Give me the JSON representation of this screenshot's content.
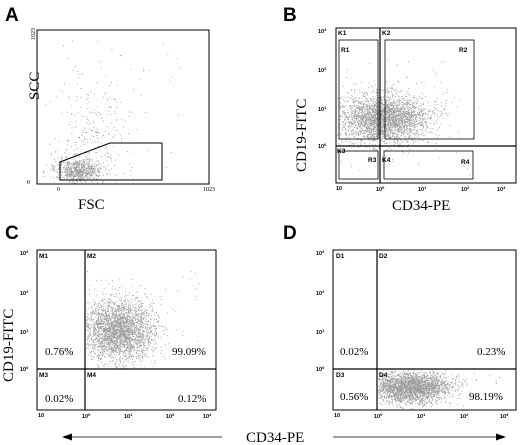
{
  "chart_data": [
    {
      "panel": "A",
      "type": "scatter",
      "xlabel": "FSC",
      "ylabel": "SCC",
      "x_ticks": [
        "0",
        "1023"
      ],
      "y_ticks": [
        "0",
        "1023"
      ],
      "xlim": [
        0,
        1023
      ],
      "ylim": [
        0,
        1023
      ],
      "points_density": "main population clustered at low FSC/SCC, sparse scatter up to high SCC",
      "gate_polygon": [
        [
          120,
          20
        ],
        [
          120,
          120
        ],
        [
          380,
          300
        ],
        [
          700,
          300
        ],
        [
          700,
          20
        ]
      ]
    },
    {
      "panel": "B",
      "type": "scatter",
      "xlabel": "CD34-PE",
      "ylabel": "CD19-FITC",
      "log_scale": true,
      "x_ticks": [
        "10^0",
        "10^1",
        "10^2",
        "10^3",
        "10^4"
      ],
      "y_ticks": [
        "10^0",
        "10^1",
        "10^2",
        "10^3"
      ],
      "quadrants": [
        "K1",
        "K2",
        "K3",
        "K4"
      ],
      "regions": [
        "R1",
        "R2",
        "R3",
        "R4"
      ]
    },
    {
      "panel": "C",
      "type": "scatter",
      "xlabel": "CD34-PE",
      "ylabel": "CD19-FITC",
      "log_scale": true,
      "x_ticks": [
        "10^0",
        "10^1",
        "10^2",
        "10^3",
        "10^4"
      ],
      "y_ticks": [
        "10^0",
        "10^1",
        "10^2",
        "10^3"
      ],
      "quadrants": [
        {
          "name": "M1",
          "percent": "0.76%"
        },
        {
          "name": "M2",
          "percent": "99.09%"
        },
        {
          "name": "M3",
          "percent": "0.02%"
        },
        {
          "name": "M4",
          "percent": "0.12%"
        }
      ]
    },
    {
      "panel": "D",
      "type": "scatter",
      "xlabel": "CD34-PE",
      "ylabel": "CD19-FITC",
      "log_scale": true,
      "x_ticks": [
        "10^0",
        "10^1",
        "10^2",
        "10^3",
        "10^4"
      ],
      "y_ticks": [
        "10^0",
        "10^1",
        "10^2",
        "10^3"
      ],
      "quadrants": [
        {
          "name": "D1",
          "percent": "0.02%"
        },
        {
          "name": "D2",
          "percent": "0.23%"
        },
        {
          "name": "D3",
          "percent": "0.56%"
        },
        {
          "name": "D4",
          "percent": "98.19%"
        }
      ]
    }
  ],
  "labels": {
    "A": "A",
    "B": "B",
    "C": "C",
    "D": "D",
    "fsc": "FSC",
    "scc": "SCC",
    "cd19": "CD19-FITC",
    "cd34": "CD34-PE",
    "bottom_axis": "CD34-PE",
    "tick0": "0",
    "tick1023": "1023",
    "tick1023y": "1023",
    "e0": "10",
    "e1": "10",
    "e2": "10",
    "e3": "10",
    "e4": "10",
    "s0": "0",
    "s1": "1",
    "s2": "2",
    "s3": "3",
    "s4": "4"
  },
  "quads": {
    "K1": "K1",
    "K2": "K2",
    "K3": "K3",
    "K4": "K4",
    "R1": "R1",
    "R2": "R2",
    "R3": "R3",
    "R4": "R4",
    "M1": "M1",
    "M2": "M2",
    "M3": "M3",
    "M4": "M4",
    "D1": "D1",
    "D2": "D2",
    "D3": "D3",
    "D4": "D4"
  },
  "percents": {
    "c_m1": "0.76%",
    "c_m2": "99.09%",
    "c_m3": "0.02%",
    "c_m4": "0.12%",
    "d_d1": "0.02%",
    "d_d2": "0.23%",
    "d_d3": "0.56%",
    "d_d4": "98.19%"
  },
  "colors": {
    "dots": "#9a9a9a",
    "axes": "#000000"
  }
}
